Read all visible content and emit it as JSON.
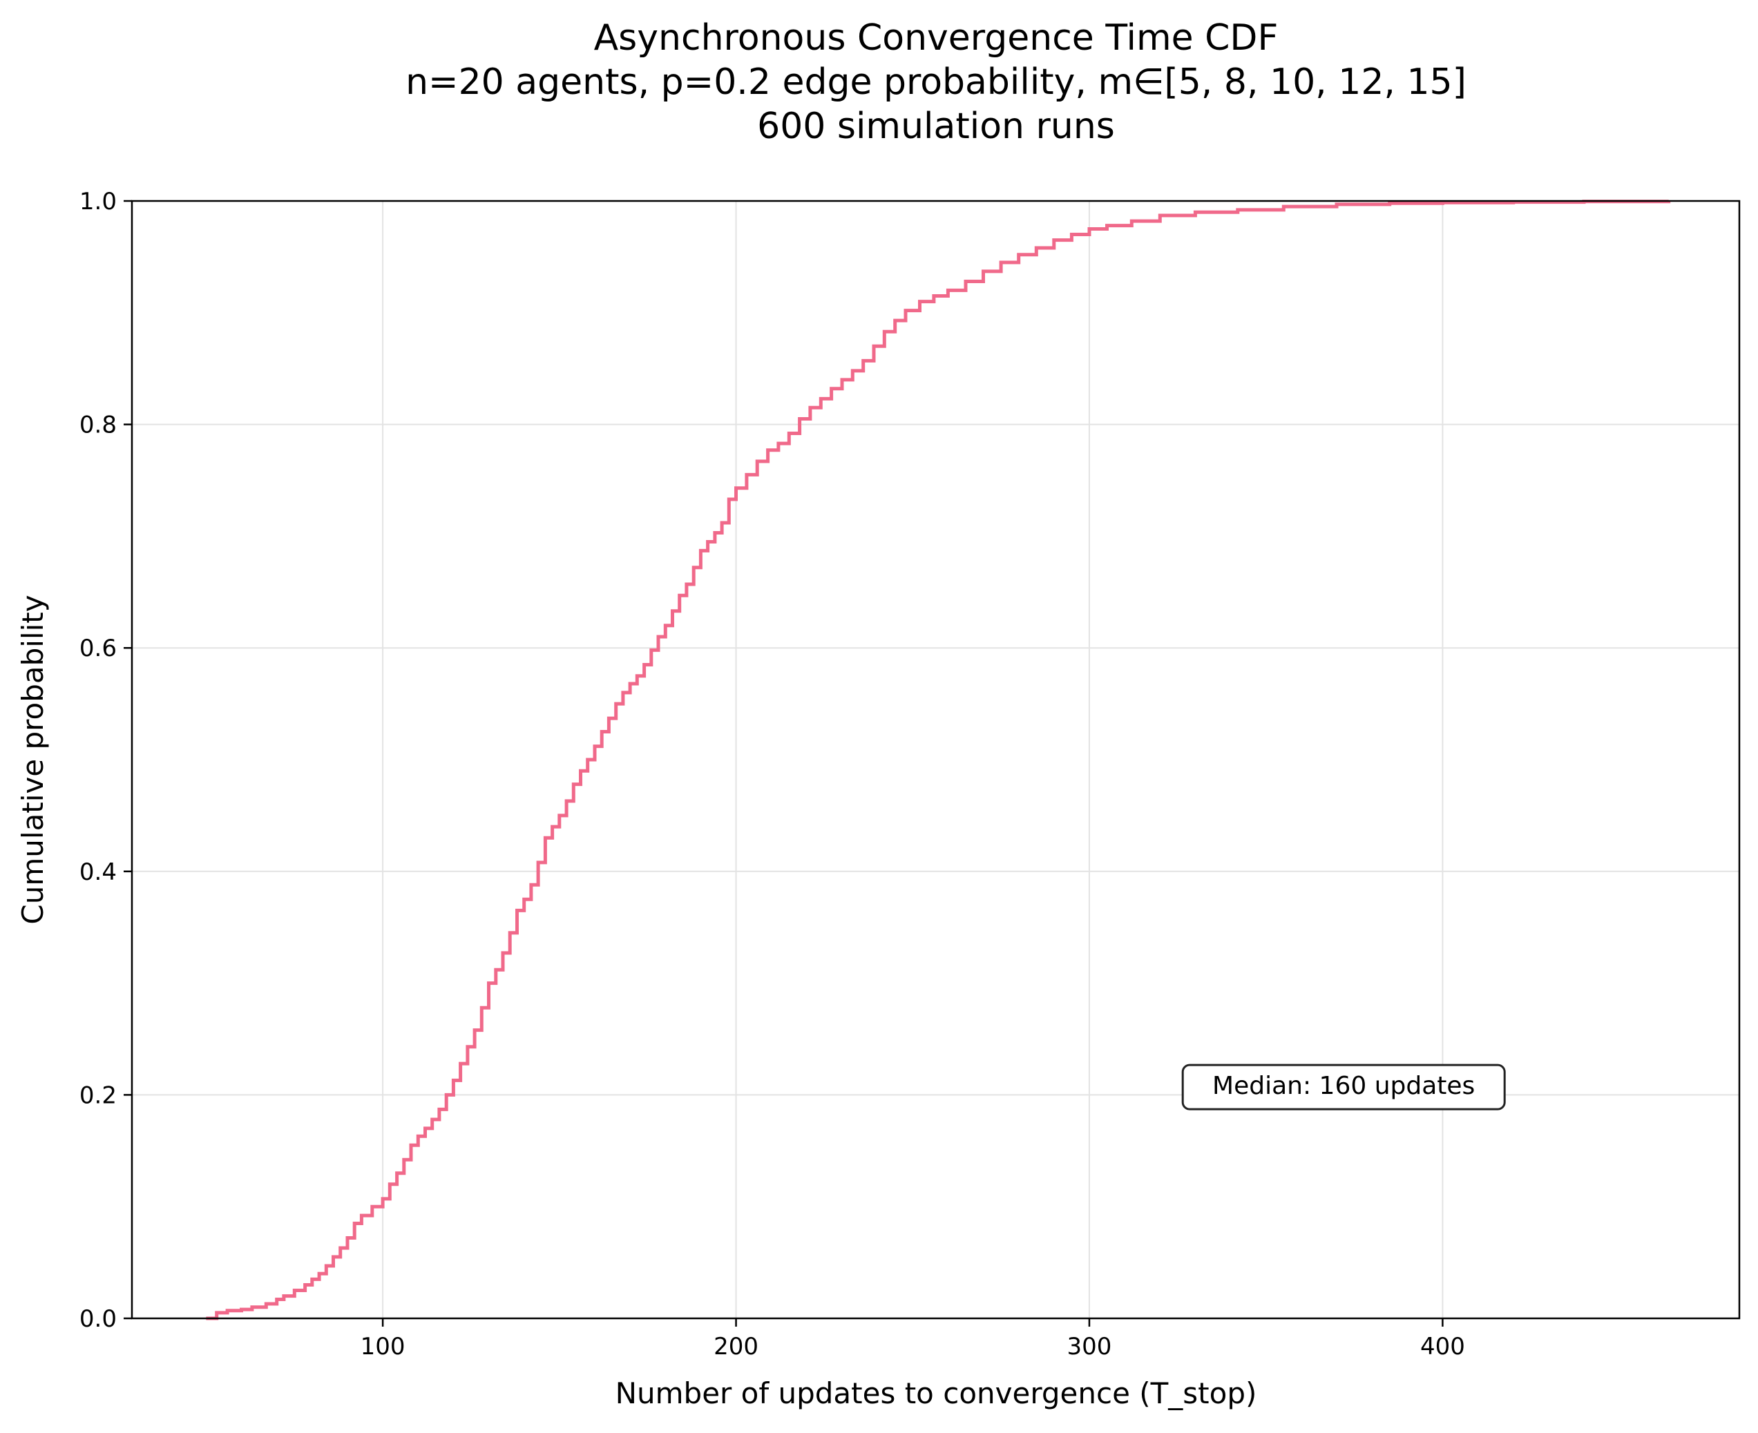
{
  "chart_data": {
    "type": "line",
    "title": [
      "Asynchronous Convergence Time CDF",
      "n=20 agents, p=0.2 edge probability, m∈[5, 8, 10, 12, 15]",
      "600 simulation runs"
    ],
    "xlabel": "Number of updates to convergence (T_stop)",
    "ylabel": "Cumulative probability",
    "xlim": [
      29,
      484
    ],
    "ylim": [
      0.0,
      1.0
    ],
    "x_ticks": [
      100,
      200,
      300,
      400
    ],
    "x_tick_labels": [
      "100",
      "200",
      "300",
      "400"
    ],
    "y_ticks": [
      0.0,
      0.2,
      0.4,
      0.6,
      0.8,
      1.0
    ],
    "y_tick_labels": [
      "0.0",
      "0.2",
      "0.4",
      "0.6",
      "0.8",
      "1.0"
    ],
    "grid": true,
    "line_style": "step",
    "annotation": {
      "text": "Median: 160 updates",
      "x": 372,
      "y": 0.207
    },
    "series": [
      {
        "color": "#f0698a",
        "points": [
          [
            50,
            0.0
          ],
          [
            53,
            0.005
          ],
          [
            56,
            0.007
          ],
          [
            60,
            0.008
          ],
          [
            63,
            0.01
          ],
          [
            67,
            0.013
          ],
          [
            70,
            0.017
          ],
          [
            72,
            0.02
          ],
          [
            75,
            0.025
          ],
          [
            78,
            0.03
          ],
          [
            80,
            0.035
          ],
          [
            82,
            0.04
          ],
          [
            84,
            0.047
          ],
          [
            86,
            0.055
          ],
          [
            88,
            0.063
          ],
          [
            90,
            0.072
          ],
          [
            92,
            0.085
          ],
          [
            94,
            0.092
          ],
          [
            97,
            0.1
          ],
          [
            100,
            0.107
          ],
          [
            102,
            0.12
          ],
          [
            104,
            0.13
          ],
          [
            106,
            0.142
          ],
          [
            108,
            0.155
          ],
          [
            110,
            0.163
          ],
          [
            112,
            0.17
          ],
          [
            114,
            0.178
          ],
          [
            116,
            0.187
          ],
          [
            118,
            0.2
          ],
          [
            120,
            0.213
          ],
          [
            122,
            0.228
          ],
          [
            124,
            0.243
          ],
          [
            126,
            0.258
          ],
          [
            128,
            0.278
          ],
          [
            130,
            0.3
          ],
          [
            132,
            0.312
          ],
          [
            134,
            0.327
          ],
          [
            136,
            0.345
          ],
          [
            138,
            0.365
          ],
          [
            140,
            0.375
          ],
          [
            142,
            0.388
          ],
          [
            144,
            0.408
          ],
          [
            146,
            0.43
          ],
          [
            148,
            0.44
          ],
          [
            150,
            0.45
          ],
          [
            152,
            0.463
          ],
          [
            154,
            0.478
          ],
          [
            156,
            0.49
          ],
          [
            158,
            0.5
          ],
          [
            160,
            0.512
          ],
          [
            162,
            0.525
          ],
          [
            164,
            0.537
          ],
          [
            166,
            0.55
          ],
          [
            168,
            0.56
          ],
          [
            170,
            0.568
          ],
          [
            172,
            0.575
          ],
          [
            174,
            0.585
          ],
          [
            176,
            0.598
          ],
          [
            178,
            0.61
          ],
          [
            180,
            0.62
          ],
          [
            182,
            0.633
          ],
          [
            184,
            0.647
          ],
          [
            186,
            0.657
          ],
          [
            188,
            0.672
          ],
          [
            190,
            0.687
          ],
          [
            192,
            0.695
          ],
          [
            194,
            0.703
          ],
          [
            196,
            0.712
          ],
          [
            198,
            0.733
          ],
          [
            200,
            0.743
          ],
          [
            203,
            0.755
          ],
          [
            206,
            0.767
          ],
          [
            209,
            0.777
          ],
          [
            212,
            0.783
          ],
          [
            215,
            0.792
          ],
          [
            218,
            0.805
          ],
          [
            221,
            0.815
          ],
          [
            224,
            0.823
          ],
          [
            227,
            0.832
          ],
          [
            230,
            0.84
          ],
          [
            233,
            0.848
          ],
          [
            236,
            0.857
          ],
          [
            239,
            0.87
          ],
          [
            242,
            0.883
          ],
          [
            245,
            0.893
          ],
          [
            248,
            0.902
          ],
          [
            252,
            0.91
          ],
          [
            256,
            0.915
          ],
          [
            260,
            0.92
          ],
          [
            265,
            0.928
          ],
          [
            270,
            0.937
          ],
          [
            275,
            0.945
          ],
          [
            280,
            0.952
          ],
          [
            285,
            0.958
          ],
          [
            290,
            0.965
          ],
          [
            295,
            0.97
          ],
          [
            300,
            0.975
          ],
          [
            305,
            0.978
          ],
          [
            312,
            0.982
          ],
          [
            320,
            0.987
          ],
          [
            330,
            0.99
          ],
          [
            342,
            0.992
          ],
          [
            355,
            0.995
          ],
          [
            370,
            0.997
          ],
          [
            385,
            0.998
          ],
          [
            400,
            0.9985
          ],
          [
            420,
            0.999
          ],
          [
            440,
            0.9995
          ],
          [
            464,
            1.0
          ]
        ]
      }
    ]
  }
}
